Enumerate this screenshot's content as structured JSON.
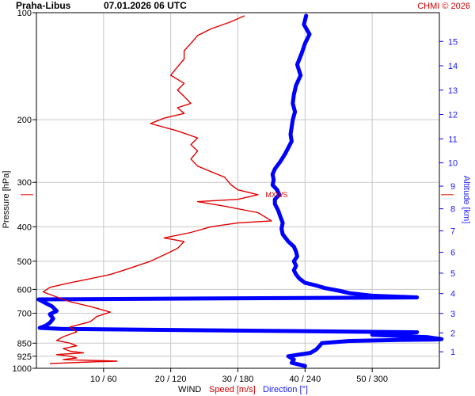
{
  "header": {
    "station": "Praha-Libus",
    "datetime": "07.01.2026 06 UTC",
    "copyright": "CHMI © 2026"
  },
  "colors": {
    "speed": "#e00000",
    "direction": "#0000ff",
    "axis_text_blue": "#1a1aff",
    "grid": "#c8c8c8",
    "frame": "#000000"
  },
  "chart_data": {
    "type": "line",
    "y_axis": {
      "label": "Pressure [hPa]",
      "scale": "log",
      "range": [
        1000,
        100
      ],
      "ticks": [
        "100",
        "200",
        "300",
        "400",
        "500",
        "600",
        "700",
        "850",
        "925",
        "1000"
      ]
    },
    "right_axis": {
      "label": "Altitude [km]",
      "ticks": [
        "1",
        "2",
        "3",
        "4",
        "5",
        "6",
        "7",
        "8",
        "9",
        "10",
        "11",
        "12",
        "13",
        "14",
        "15"
      ]
    },
    "x_axis": {
      "label_wind": "WIND",
      "label_speed": "Speed [m/s]",
      "label_direction": "Direction [°]",
      "speed_range": [
        0,
        60
      ],
      "direction_range": [
        0,
        360
      ],
      "ticks": [
        "10 / 60",
        "20 / 120",
        "30 / 180",
        "40 / 240",
        "50 / 300"
      ]
    },
    "annotation": {
      "text": "MXWS",
      "pressure": 325,
      "speed": 34
    },
    "series": [
      {
        "name": "Speed [m/s]",
        "points": [
          [
            970,
            2
          ],
          [
            960,
            8
          ],
          [
            955,
            12
          ],
          [
            945,
            4
          ],
          [
            935,
            6
          ],
          [
            925,
            5
          ],
          [
            915,
            3
          ],
          [
            905,
            7
          ],
          [
            895,
            5
          ],
          [
            880,
            4
          ],
          [
            865,
            6
          ],
          [
            850,
            5
          ],
          [
            835,
            3
          ],
          [
            815,
            4
          ],
          [
            790,
            6
          ],
          [
            765,
            5
          ],
          [
            740,
            8
          ],
          [
            715,
            9
          ],
          [
            695,
            11
          ],
          [
            670,
            8
          ],
          [
            650,
            5
          ],
          [
            630,
            3
          ],
          [
            610,
            1
          ],
          [
            592,
            2
          ],
          [
            575,
            5
          ],
          [
            560,
            8
          ],
          [
            545,
            11
          ],
          [
            530,
            13
          ],
          [
            515,
            15
          ],
          [
            500,
            17
          ],
          [
            480,
            19
          ],
          [
            460,
            21
          ],
          [
            440,
            22
          ],
          [
            430,
            19
          ],
          [
            415,
            23
          ],
          [
            400,
            26
          ],
          [
            390,
            30
          ],
          [
            385,
            35
          ],
          [
            375,
            34
          ],
          [
            365,
            33
          ],
          [
            350,
            28
          ],
          [
            340,
            24
          ],
          [
            335,
            30
          ],
          [
            325,
            33
          ],
          [
            315,
            30
          ],
          [
            305,
            29
          ],
          [
            290,
            28
          ],
          [
            280,
            26
          ],
          [
            270,
            24
          ],
          [
            258,
            23
          ],
          [
            245,
            24
          ],
          [
            235,
            23
          ],
          [
            225,
            24
          ],
          [
            215,
            21
          ],
          [
            205,
            17
          ],
          [
            198,
            19
          ],
          [
            192,
            22
          ],
          [
            185,
            21
          ],
          [
            180,
            23
          ],
          [
            172,
            22
          ],
          [
            165,
            21
          ],
          [
            158,
            22
          ],
          [
            150,
            20
          ],
          [
            142,
            21
          ],
          [
            135,
            22
          ],
          [
            128,
            22
          ],
          [
            122,
            23
          ],
          [
            116,
            24
          ],
          [
            111,
            26
          ],
          [
            106,
            29
          ],
          [
            102,
            31
          ]
        ]
      },
      {
        "name": "Direction [°]",
        "points": [
          [
            985,
            240
          ],
          [
            965,
            228
          ],
          [
            945,
            230
          ],
          [
            925,
            225
          ],
          [
            905,
            245
          ],
          [
            885,
            250
          ],
          [
            865,
            253
          ],
          [
            850,
            255
          ],
          [
            838,
            280
          ],
          [
            832,
            330
          ],
          [
            830,
            355
          ],
          [
            828,
            362
          ],
          [
            818,
            350
          ],
          [
            805,
            300
          ],
          [
            792,
            340
          ],
          [
            775,
            22
          ],
          [
            770,
            3
          ],
          [
            760,
            8
          ],
          [
            745,
            12
          ],
          [
            725,
            15
          ],
          [
            705,
            12
          ],
          [
            690,
            18
          ],
          [
            670,
            14
          ],
          [
            655,
            8
          ],
          [
            640,
            2
          ],
          [
            632,
            340
          ],
          [
            625,
            300
          ],
          [
            615,
            280
          ],
          [
            605,
            270
          ],
          [
            595,
            258
          ],
          [
            585,
            250
          ],
          [
            575,
            240
          ],
          [
            560,
            235
          ],
          [
            545,
            232
          ],
          [
            530,
            230
          ],
          [
            515,
            232
          ],
          [
            500,
            230
          ],
          [
            485,
            233
          ],
          [
            470,
            232
          ],
          [
            455,
            230
          ],
          [
            440,
            225
          ],
          [
            420,
            220
          ],
          [
            405,
            219
          ],
          [
            390,
            220
          ],
          [
            375,
            218
          ],
          [
            360,
            216
          ],
          [
            345,
            213
          ],
          [
            335,
            213
          ],
          [
            325,
            217
          ],
          [
            315,
            215
          ],
          [
            305,
            211
          ],
          [
            295,
            212
          ],
          [
            285,
            211
          ],
          [
            275,
            213
          ],
          [
            262,
            218
          ],
          [
            250,
            222
          ],
          [
            240,
            225
          ],
          [
            230,
            228
          ],
          [
            220,
            227
          ],
          [
            210,
            228
          ],
          [
            200,
            229
          ],
          [
            190,
            231
          ],
          [
            180,
            229
          ],
          [
            170,
            230
          ],
          [
            160,
            232
          ],
          [
            150,
            236
          ],
          [
            140,
            233
          ],
          [
            130,
            237
          ],
          [
            122,
            240
          ],
          [
            115,
            244
          ],
          [
            108,
            239
          ],
          [
            102,
            241
          ]
        ]
      }
    ]
  }
}
